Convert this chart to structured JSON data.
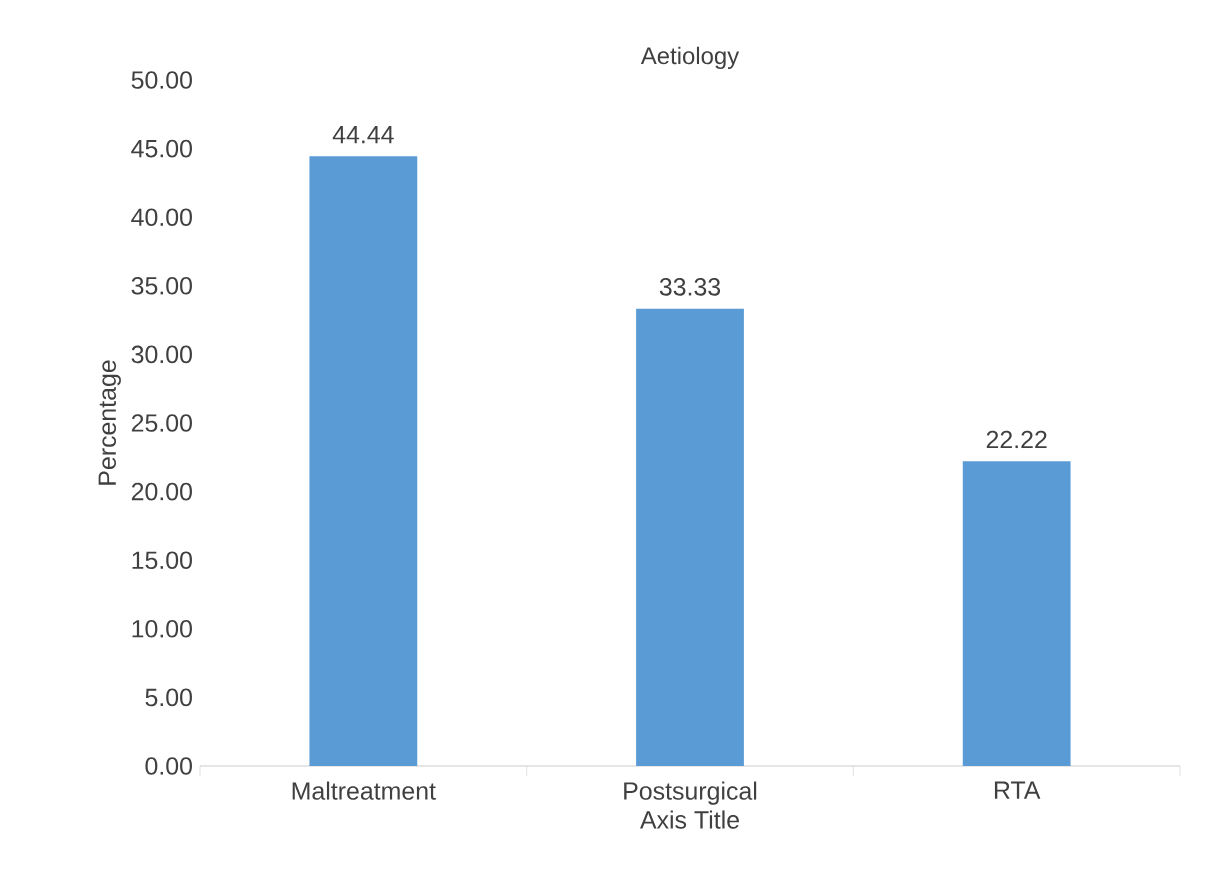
{
  "chart_data": {
    "type": "bar",
    "title": "Aetiology",
    "xlabel": "Axis Title",
    "ylabel": "Percentage",
    "categories": [
      "Maltreatment",
      "Postsurgical",
      "RTA"
    ],
    "values": [
      44.44,
      33.33,
      22.22
    ],
    "color": "#5b9bd5",
    "data_labels": true,
    "grid": false,
    "ylim": [
      0,
      50
    ],
    "yticks": [
      {
        "value": 0,
        "label": "0.00"
      },
      {
        "value": 5,
        "label": "5.00"
      },
      {
        "value": 10,
        "label": "10.00"
      },
      {
        "value": 15,
        "label": "15.00"
      },
      {
        "value": 20,
        "label": "20.00"
      },
      {
        "value": 25,
        "label": "25.00"
      },
      {
        "value": 30,
        "label": "30.00"
      },
      {
        "value": 35,
        "label": "35.00"
      },
      {
        "value": 40,
        "label": "40.00"
      },
      {
        "value": 45,
        "label": "45.00"
      },
      {
        "value": 50,
        "label": "50.00"
      }
    ]
  }
}
